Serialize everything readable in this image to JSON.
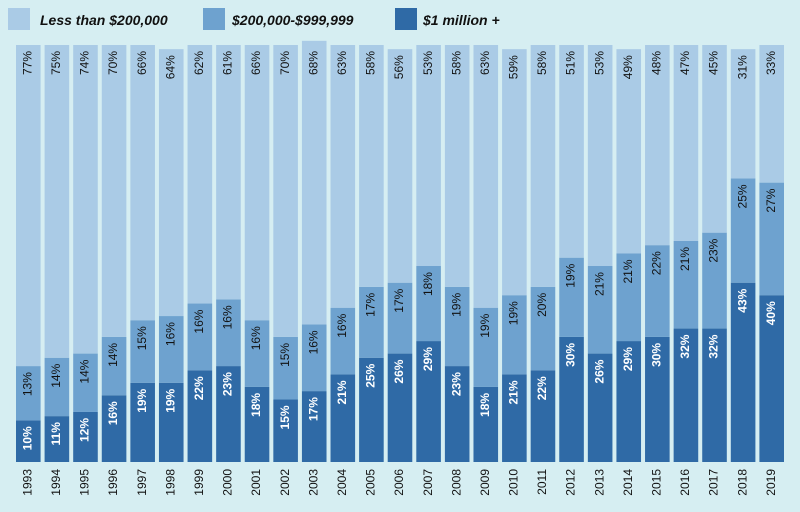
{
  "colors": {
    "background": "#d6eef2",
    "less_than_200k": "#aacbe6",
    "mid_200k_999k": "#6ea2cf",
    "one_million_plus": "#2f6aa6"
  },
  "chart_data": {
    "type": "bar",
    "stacked": true,
    "orientation": "vertical",
    "legend_position": "top",
    "ylim": [
      0,
      100
    ],
    "categories": [
      "1993",
      "1994",
      "1995",
      "1996",
      "1997",
      "1998",
      "1999",
      "2000",
      "2001",
      "2002",
      "2003",
      "2004",
      "2005",
      "2006",
      "2007",
      "2008",
      "2009",
      "2010",
      "2011",
      "2012",
      "2013",
      "2014",
      "2015",
      "2016",
      "2017",
      "2018",
      "2019"
    ],
    "series": [
      {
        "name": "$1 million +",
        "values": [
          10,
          11,
          12,
          16,
          19,
          19,
          22,
          23,
          18,
          15,
          17,
          21,
          25,
          26,
          29,
          23,
          18,
          21,
          22,
          30,
          26,
          29,
          30,
          32,
          32,
          43,
          40
        ],
        "labels": [
          "10%",
          "11%",
          "12%",
          "16%",
          "19%",
          "19%",
          "22%",
          "23%",
          "18%",
          "15%",
          "17%",
          "21%",
          "25%",
          "26%",
          "29%",
          "23%",
          "18%",
          "21%",
          "22%",
          "30%",
          "26%",
          "29%",
          "30%",
          "32%",
          "32%",
          "43%",
          "40%"
        ]
      },
      {
        "name": "$200,000-$999,999",
        "values": [
          13,
          14,
          14,
          14,
          15,
          16,
          16,
          16,
          16,
          15,
          16,
          16,
          17,
          17,
          18,
          19,
          19,
          19,
          20,
          19,
          21,
          21,
          22,
          21,
          23,
          25,
          27
        ],
        "labels": [
          "13%",
          "14%",
          "14%",
          "14%",
          "15%",
          "16%",
          "16%",
          "16%",
          "16%",
          "15%",
          "16%",
          "16%",
          "17%",
          "17%",
          "18%",
          "19%",
          "19%",
          "19%",
          "20%",
          "19%",
          "21%",
          "21%",
          "22%",
          "21%",
          "23%",
          "25%",
          "27%"
        ]
      },
      {
        "name": "Less than $200,000",
        "values": [
          77,
          75,
          74,
          70,
          66,
          64,
          62,
          61,
          66,
          70,
          68,
          63,
          58,
          56,
          53,
          58,
          63,
          59,
          58,
          51,
          53,
          49,
          48,
          47,
          45,
          31,
          33
        ],
        "labels": [
          "77%",
          "75%",
          "74%",
          "70%",
          "66%",
          "64%",
          "62%",
          "61%",
          "66%",
          "70%",
          "68%",
          "63%",
          "58%",
          "56%",
          "53%",
          "58%",
          "63%",
          "59%",
          "58%",
          "51%",
          "53%",
          "49%",
          "48%",
          "47%",
          "45%",
          "31%",
          "33%"
        ]
      }
    ],
    "legend_order": [
      "Less than $200,000",
      "$200,000-$999,999",
      "$1 million +"
    ]
  }
}
